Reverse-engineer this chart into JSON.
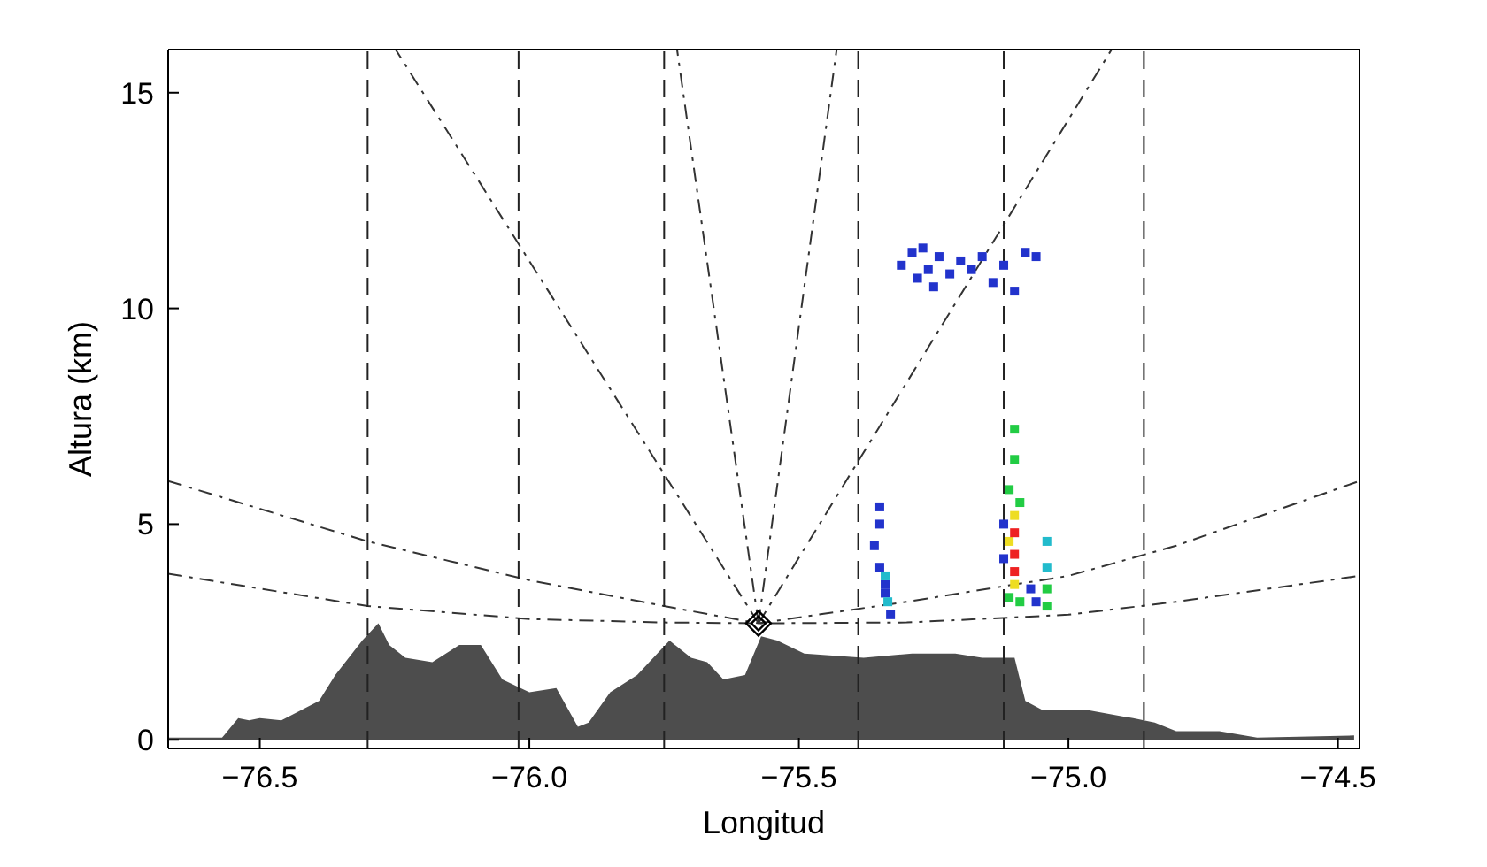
{
  "chart_data": {
    "type": "area",
    "xlabel": "Longitud",
    "ylabel": "Altura (km)",
    "xlim": [
      -76.67,
      -74.46
    ],
    "ylim": [
      -0.2,
      16
    ],
    "xticks": [
      {
        "value": -76.5,
        "label": "−76.5"
      },
      {
        "value": -76,
        "label": "−76.0"
      },
      {
        "value": -75.5,
        "label": "−75.5"
      },
      {
        "value": -75,
        "label": "−75.0"
      },
      {
        "value": -74.5,
        "label": "−74.5"
      }
    ],
    "yticks": [
      0,
      5,
      10,
      15
    ],
    "legend": false,
    "ref_lines": [
      {
        "axis": "x",
        "value": -76.3,
        "color": "#222222",
        "line_style": "dashed"
      },
      {
        "axis": "x",
        "value": -76.02,
        "color": "#222222",
        "line_style": "dashed"
      },
      {
        "axis": "x",
        "value": -75.75,
        "color": "#222222",
        "line_style": "dashed"
      },
      {
        "axis": "x",
        "value": -75.39,
        "color": "#222222",
        "line_style": "dashed"
      },
      {
        "axis": "x",
        "value": -75.12,
        "color": "#222222",
        "line_style": "dashed"
      },
      {
        "axis": "x",
        "value": -74.86,
        "color": "#222222",
        "line_style": "dashed"
      }
    ],
    "series": [
      {
        "color": "#4d4d4d",
        "x": [
          -76.67,
          -76.57,
          -76.54,
          -76.52,
          -76.5,
          -76.46,
          -76.39,
          -76.36,
          -76.31,
          -76.28,
          -76.26,
          -76.23,
          -76.18,
          -76.13,
          -76.09,
          -76.05,
          -76.0,
          -75.95,
          -75.91,
          -75.89,
          -75.85,
          -75.8,
          -75.74,
          -75.7,
          -75.67,
          -75.64,
          -75.6,
          -75.57,
          -75.54,
          -75.49,
          -75.38,
          -75.29,
          -75.21,
          -75.16,
          -75.1,
          -75.08,
          -75.05,
          -74.97,
          -74.88,
          -74.84,
          -74.8,
          -74.72,
          -74.65,
          -74.47
        ],
        "values": [
          0.05,
          0.05,
          0.5,
          0.45,
          0.5,
          0.45,
          0.9,
          1.5,
          2.3,
          2.7,
          2.2,
          1.9,
          1.8,
          2.2,
          2.2,
          1.4,
          1.1,
          1.2,
          0.3,
          0.4,
          1.1,
          1.5,
          2.3,
          1.9,
          1.8,
          1.4,
          1.5,
          2.4,
          2.3,
          2.0,
          1.9,
          2.0,
          2.0,
          1.9,
          1.9,
          0.9,
          0.7,
          0.7,
          0.5,
          0.4,
          0.2,
          0.2,
          0.05,
          0.1
        ]
      },
      {
        "type": "line",
        "color": "#333333",
        "line_style": "dashed",
        "marker": "none",
        "x": [
          -76.67,
          -76.3,
          -76.0,
          -75.75,
          -75.575,
          -75.3,
          -75.0,
          -74.8,
          -74.46
        ],
        "values": [
          3.85,
          3.1,
          2.8,
          2.72,
          2.7,
          2.72,
          2.9,
          3.2,
          3.8
        ]
      },
      {
        "type": "line",
        "color": "#333333",
        "line_style": "dashed",
        "marker": "none",
        "x": [
          -76.67,
          -76.3,
          -76.0,
          -75.75,
          -75.575,
          -75.3,
          -75.0,
          -74.8,
          -74.46
        ],
        "values": [
          6.0,
          4.6,
          3.7,
          3.1,
          2.7,
          3.2,
          3.8,
          4.5,
          6.0
        ]
      },
      {
        "type": "line",
        "color": "#333333",
        "line_style": "dashed",
        "marker": "none",
        "x": [
          -75.575,
          -76.248
        ],
        "values": [
          2.7,
          16
        ]
      },
      {
        "type": "line",
        "color": "#333333",
        "line_style": "dashed",
        "marker": "none",
        "x": [
          -75.575,
          -75.726
        ],
        "values": [
          2.7,
          16
        ]
      },
      {
        "type": "line",
        "color": "#333333",
        "line_style": "dashed",
        "marker": "none",
        "x": [
          -75.575,
          -75.43
        ],
        "values": [
          2.7,
          16
        ]
      },
      {
        "type": "line",
        "color": "#333333",
        "line_style": "dashed",
        "marker": "none",
        "x": [
          -75.575,
          -74.92
        ],
        "values": [
          2.7,
          16
        ]
      },
      {
        "type": "scatter",
        "color": "#2233cc",
        "marker": "square",
        "x": [
          -75.31,
          -75.29,
          -75.28,
          -75.27,
          -75.26,
          -75.25,
          -75.24,
          -75.22,
          -75.2,
          -75.18,
          -75.16,
          -75.14,
          -75.12,
          -75.1,
          -75.08,
          -75.06,
          -75.35,
          -75.35,
          -75.36,
          -75.35,
          -75.34,
          -75.34,
          -75.33,
          -75.12,
          -75.12,
          -75.07,
          -75.06
        ],
        "values": [
          11.0,
          11.3,
          10.7,
          11.4,
          10.9,
          10.5,
          11.2,
          10.8,
          11.1,
          10.9,
          11.2,
          10.6,
          11.0,
          10.4,
          11.3,
          11.2,
          5.4,
          5.0,
          4.5,
          4.0,
          3.6,
          3.4,
          2.9,
          5.0,
          4.2,
          3.5,
          3.2
        ]
      },
      {
        "type": "scatter",
        "color": "#22bbcc",
        "marker": "square",
        "x": [
          -75.34,
          -75.335,
          -75.04,
          -75.04
        ],
        "values": [
          3.8,
          3.2,
          4.6,
          4.0
        ]
      },
      {
        "type": "scatter",
        "color": "#22cc44",
        "marker": "square",
        "x": [
          -75.1,
          -75.1,
          -75.11,
          -75.09,
          -75.11,
          -75.09,
          -75.04,
          -75.04
        ],
        "values": [
          7.2,
          6.5,
          5.8,
          5.5,
          3.3,
          3.2,
          3.5,
          3.1
        ]
      },
      {
        "type": "scatter",
        "color": "#eedd22",
        "marker": "square",
        "x": [
          -75.1,
          -75.1,
          -75.11
        ],
        "values": [
          5.2,
          3.6,
          4.6
        ]
      },
      {
        "type": "scatter",
        "color": "#ee2222",
        "marker": "square",
        "x": [
          -75.1,
          -75.1,
          -75.1
        ],
        "values": [
          4.8,
          4.3,
          3.9
        ]
      },
      {
        "type": "scatter",
        "color": "#000000",
        "marker": "diamond",
        "x": [
          -75.575
        ],
        "values": [
          2.7
        ]
      }
    ]
  }
}
